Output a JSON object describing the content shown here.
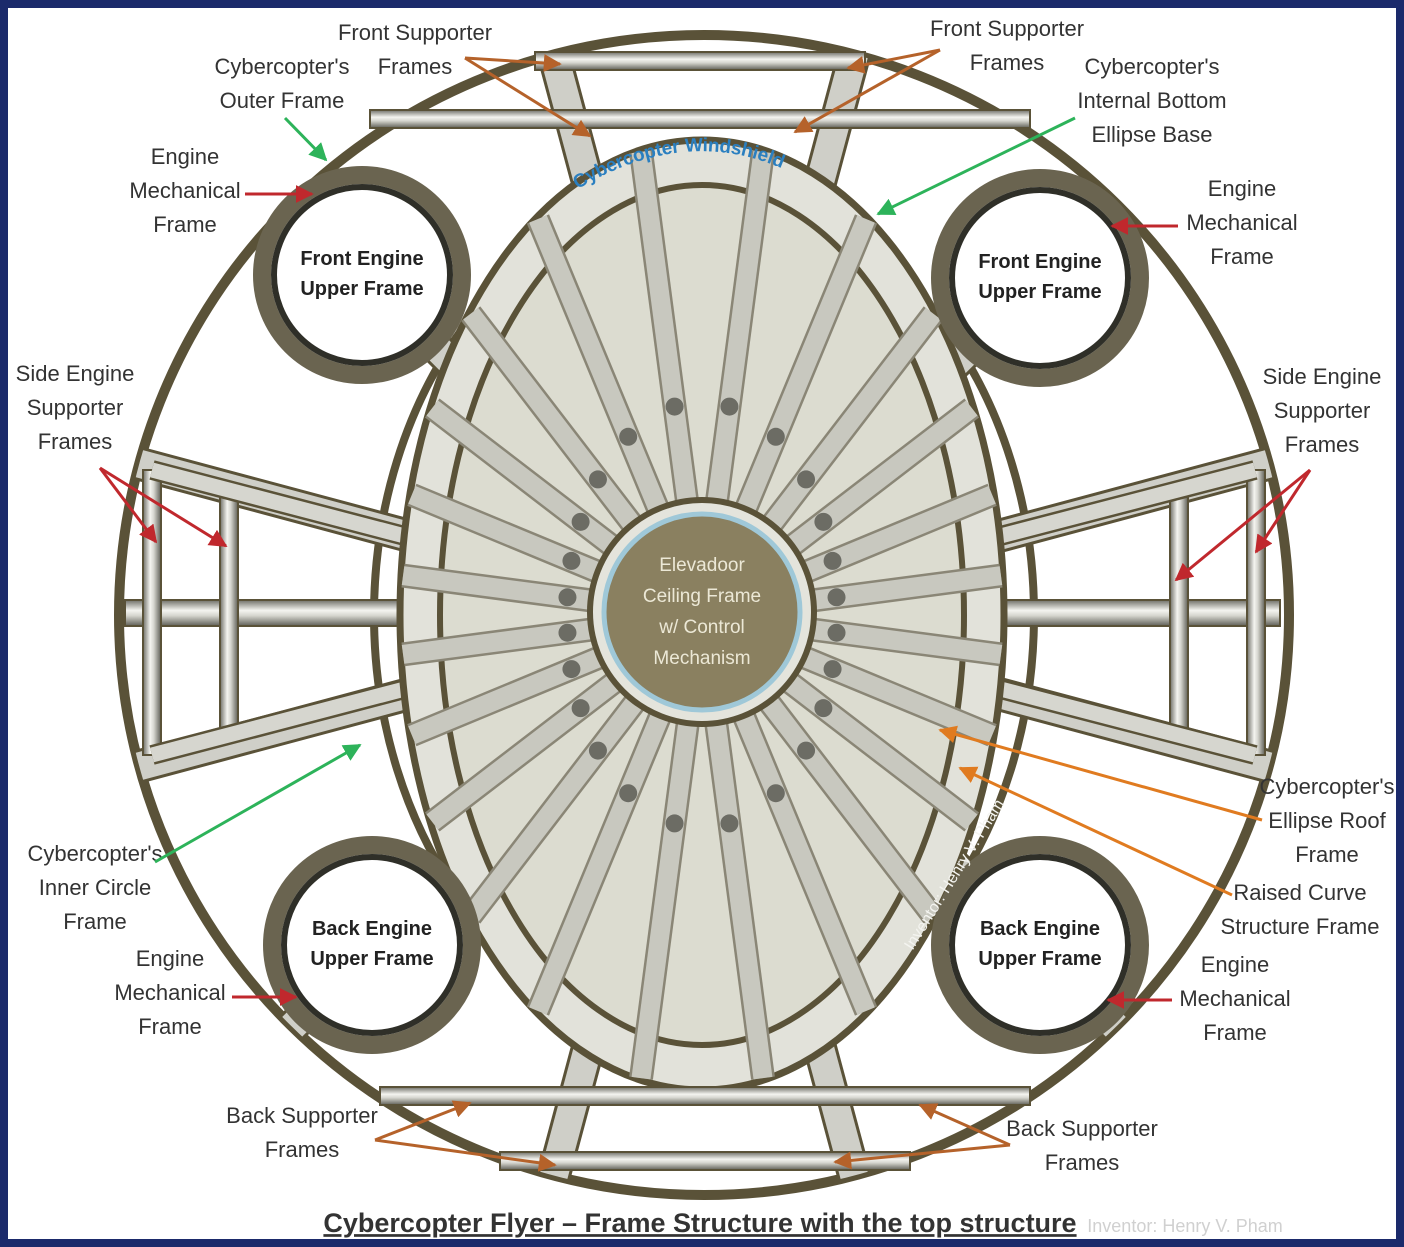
{
  "title": "Cybercopter Flyer – Frame Structure with the top structure",
  "credit": "Inventor: Henry V. Pham",
  "watermark": "Inventor: Henry V. Pham",
  "windshield": "Cybercopter Windshield",
  "center": [
    "Elevadoor",
    "Ceiling Frame",
    "w/ Control",
    "Mechanism"
  ],
  "engines": [
    [
      "Front Engine",
      "Upper Frame"
    ],
    [
      "Front Engine",
      "Upper Frame"
    ],
    [
      "Back Engine",
      "Upper Frame"
    ],
    [
      "Back Engine",
      "Upper Frame"
    ]
  ],
  "callouts": [
    [
      "Front Supporter",
      "Frames"
    ],
    [
      "Front Supporter",
      "Frames"
    ],
    [
      "Cybercopter's",
      "Outer Frame"
    ],
    [
      "Cybercopter's",
      "Internal Bottom",
      "Ellipse Base"
    ],
    [
      "Engine",
      "Mechanical",
      "Frame"
    ],
    [
      "Engine",
      "Mechanical",
      "Frame"
    ],
    [
      "Side Engine",
      "Supporter",
      "Frames"
    ],
    [
      "Side Engine",
      "Supporter",
      "Frames"
    ],
    [
      "Cybercopter's",
      "Inner Circle",
      "Frame"
    ],
    [
      "Engine",
      "Mechanical",
      "Frame"
    ],
    [
      "Cybercopter's",
      "Ellipse Roof",
      "Frame"
    ],
    [
      "Raised Curve",
      "Structure Frame"
    ],
    [
      "Engine",
      "Mechanical",
      "Frame"
    ],
    [
      "Back Supporter",
      "Frames"
    ],
    [
      "Back Supporter",
      "Frames"
    ]
  ]
}
